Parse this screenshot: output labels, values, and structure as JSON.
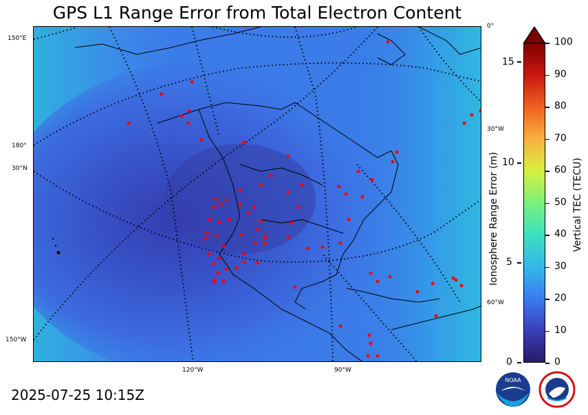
{
  "title": "GPS L1 Range Error from Total Electron Content",
  "timestamp": "2025-07-25 10:15Z",
  "map": {
    "graticule_labels": {
      "lat_150E": "150°E",
      "lat_180": "180°",
      "lat_30N": "30°N",
      "lat_150W": "150°W",
      "lon_120W": "120°W",
      "lon_90W": "90°W",
      "right_0": "0°",
      "right_30W": "30°W",
      "right_60W": "60°W"
    },
    "colors": {
      "ocean_base": "#3b7ce8",
      "low_core": "#3642b0",
      "mid": "#3d5fd6",
      "high_edge": "#36b0e6",
      "stations": "#ff0000",
      "coast": "#000000"
    },
    "station_count_visible": "many"
  },
  "colorbar": {
    "range_axis_label": "Ionosphere Range Error (m)",
    "range_ticks": [
      "0",
      "5",
      "10",
      "15"
    ],
    "tec_axis_label": "Vertical TEC (TECU)",
    "tec_ticks": [
      "0",
      "10",
      "20",
      "30",
      "40",
      "50",
      "60",
      "70",
      "80",
      "90",
      "100"
    ],
    "extend": "max",
    "colormap_stops": [
      "#2a1a66",
      "#3b3fb8",
      "#3b7cf0",
      "#33b8e8",
      "#3de0c0",
      "#7cf07c",
      "#d8f040",
      "#f8b040",
      "#f06020",
      "#c81810",
      "#7f0000"
    ]
  },
  "logos": {
    "left": "NOAA",
    "right": "NATIONAL WEATHER SERVICE"
  }
}
